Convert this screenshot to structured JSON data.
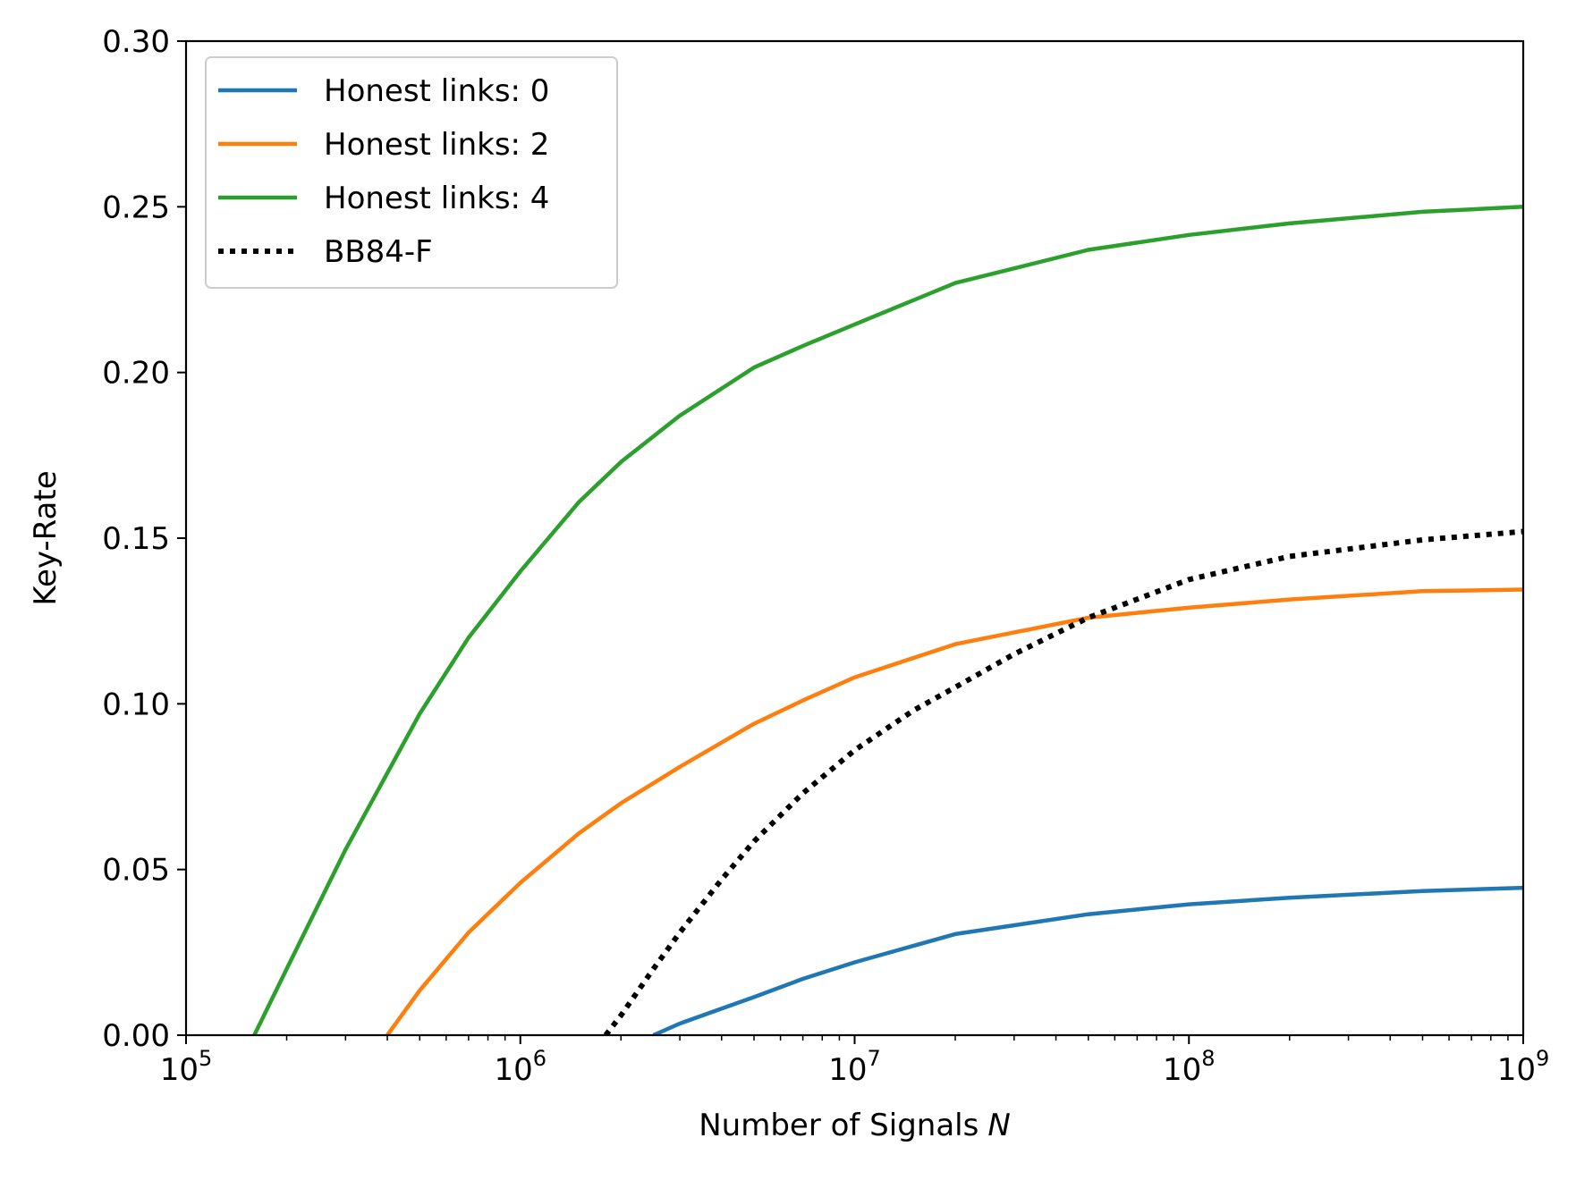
{
  "chart_data": {
    "type": "line",
    "title": "",
    "xlabel": "Number of Signals",
    "xlabel_var": "N",
    "ylabel": "Key-Rate",
    "xscale": "log",
    "xlim": [
      100000,
      1000000000
    ],
    "ylim": [
      0.0,
      0.3
    ],
    "grid": false,
    "legend_position": "top-left",
    "x_ticks": [
      {
        "value": 100000,
        "base": "10",
        "exp": "5"
      },
      {
        "value": 1000000,
        "base": "10",
        "exp": "6"
      },
      {
        "value": 10000000,
        "base": "10",
        "exp": "7"
      },
      {
        "value": 100000000,
        "base": "10",
        "exp": "8"
      },
      {
        "value": 1000000000,
        "base": "10",
        "exp": "9"
      }
    ],
    "y_ticks": [
      {
        "value": 0.0,
        "label": "0.00"
      },
      {
        "value": 0.05,
        "label": "0.05"
      },
      {
        "value": 0.1,
        "label": "0.10"
      },
      {
        "value": 0.15,
        "label": "0.15"
      },
      {
        "value": 0.2,
        "label": "0.20"
      },
      {
        "value": 0.25,
        "label": "0.25"
      },
      {
        "value": 0.3,
        "label": "0.30"
      }
    ],
    "series": [
      {
        "name": "Honest links: 0",
        "color": "#1f77b4",
        "style": "solid",
        "x": [
          2500000,
          3000000,
          4000000,
          5000000,
          7000000,
          10000000,
          20000000,
          50000000,
          100000000,
          200000000,
          500000000,
          1000000000
        ],
        "y": [
          0.0,
          0.0035,
          0.008,
          0.0115,
          0.017,
          0.022,
          0.0305,
          0.0365,
          0.0395,
          0.0415,
          0.0435,
          0.0445
        ]
      },
      {
        "name": "Honest links: 2",
        "color": "#ff7f0e",
        "style": "solid",
        "x": [
          400000,
          500000,
          700000,
          1000000,
          1500000,
          2000000,
          3000000,
          5000000,
          7000000,
          10000000,
          20000000,
          50000000,
          100000000,
          200000000,
          500000000,
          1000000000
        ],
        "y": [
          0.0,
          0.0135,
          0.031,
          0.046,
          0.061,
          0.07,
          0.081,
          0.094,
          0.101,
          0.108,
          0.118,
          0.126,
          0.129,
          0.1315,
          0.134,
          0.1345
        ]
      },
      {
        "name": "Honest links: 4",
        "color": "#2ca02c",
        "style": "solid",
        "x": [
          160000,
          200000,
          300000,
          500000,
          700000,
          1000000,
          1500000,
          2000000,
          3000000,
          5000000,
          7000000,
          10000000,
          20000000,
          50000000,
          100000000,
          200000000,
          500000000,
          1000000000
        ],
        "y": [
          0.0,
          0.02,
          0.056,
          0.097,
          0.12,
          0.14,
          0.161,
          0.173,
          0.187,
          0.2015,
          0.208,
          0.2145,
          0.227,
          0.237,
          0.2415,
          0.245,
          0.2485,
          0.25
        ]
      },
      {
        "name": "BB84-F",
        "color": "#000000",
        "style": "dotted",
        "x": [
          1800000,
          2000000,
          2500000,
          3000000,
          4000000,
          5000000,
          7000000,
          10000000,
          15000000,
          20000000,
          30000000,
          50000000,
          100000000,
          200000000,
          500000000,
          1000000000
        ],
        "y": [
          0.0,
          0.006,
          0.02,
          0.031,
          0.047,
          0.0585,
          0.073,
          0.086,
          0.098,
          0.105,
          0.115,
          0.126,
          0.1375,
          0.1445,
          0.1495,
          0.152
        ]
      }
    ]
  }
}
